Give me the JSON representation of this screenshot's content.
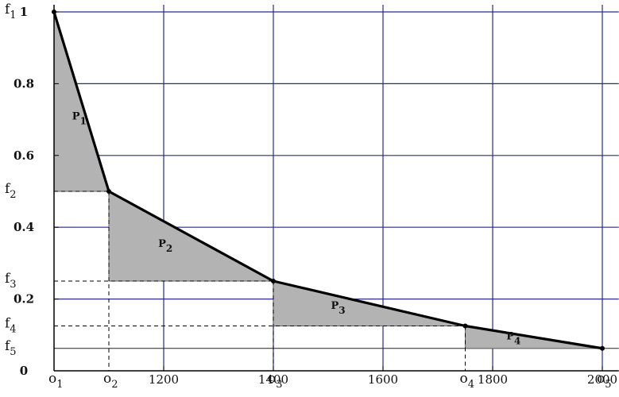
{
  "chart_data": {
    "type": "area",
    "points": [
      {
        "x": 1000,
        "y": 1.0
      },
      {
        "x": 1100,
        "y": 0.5
      },
      {
        "x": 1400,
        "y": 0.25
      },
      {
        "x": 1750,
        "y": 0.125
      },
      {
        "x": 2000,
        "y": 0.0625
      }
    ],
    "xlim": [
      1000,
      2030
    ],
    "ylim": [
      0,
      1.02
    ],
    "x_ticks": [
      {
        "value": 1200,
        "label": "1200"
      },
      {
        "value": 1400,
        "label": "1400"
      },
      {
        "value": 1600,
        "label": "1600"
      },
      {
        "value": 1800,
        "label": "1800"
      },
      {
        "value": 2000,
        "label": "2000"
      }
    ],
    "y_ticks": [
      {
        "value": 0,
        "label": "0"
      },
      {
        "value": 0.2,
        "label": "0.2"
      },
      {
        "value": 0.4,
        "label": "0.4"
      },
      {
        "value": 0.6,
        "label": "0.6"
      },
      {
        "value": 0.8,
        "label": "0.8"
      },
      {
        "value": 1.0,
        "label": "1"
      }
    ],
    "grid_x": [
      1200,
      1400,
      1600,
      1800,
      2000
    ],
    "grid_y": [
      0.2,
      0.4,
      0.6,
      0.8,
      1.0
    ],
    "o_labels": [
      {
        "x": 1000,
        "symbol": "o",
        "sub": "1"
      },
      {
        "x": 1100,
        "symbol": "o",
        "sub": "2"
      },
      {
        "x": 1400,
        "symbol": "o",
        "sub": "3"
      },
      {
        "x": 1750,
        "symbol": "o",
        "sub": "4"
      },
      {
        "x": 2000,
        "symbol": "o",
        "sub": "5"
      }
    ],
    "f_labels": [
      {
        "y": 1.0,
        "symbol": "f",
        "sub": "1"
      },
      {
        "y": 0.5,
        "symbol": "f",
        "sub": "2"
      },
      {
        "y": 0.25,
        "symbol": "f",
        "sub": "3"
      },
      {
        "y": 0.125,
        "symbol": "f",
        "sub": "4"
      },
      {
        "y": 0.0625,
        "symbol": "f",
        "sub": "5"
      }
    ],
    "regions": [
      {
        "symbol": "P",
        "sub": "1",
        "from": 0,
        "to": 1
      },
      {
        "symbol": "P",
        "sub": "2",
        "from": 1,
        "to": 2
      },
      {
        "symbol": "P",
        "sub": "3",
        "from": 2,
        "to": 3
      },
      {
        "symbol": "P",
        "sub": "4",
        "from": 3,
        "to": 4
      }
    ],
    "colors": {
      "grid": "#2a2a8a",
      "fill": "#b3b3b3",
      "curve": "#000000",
      "dashed": "#000000"
    }
  }
}
